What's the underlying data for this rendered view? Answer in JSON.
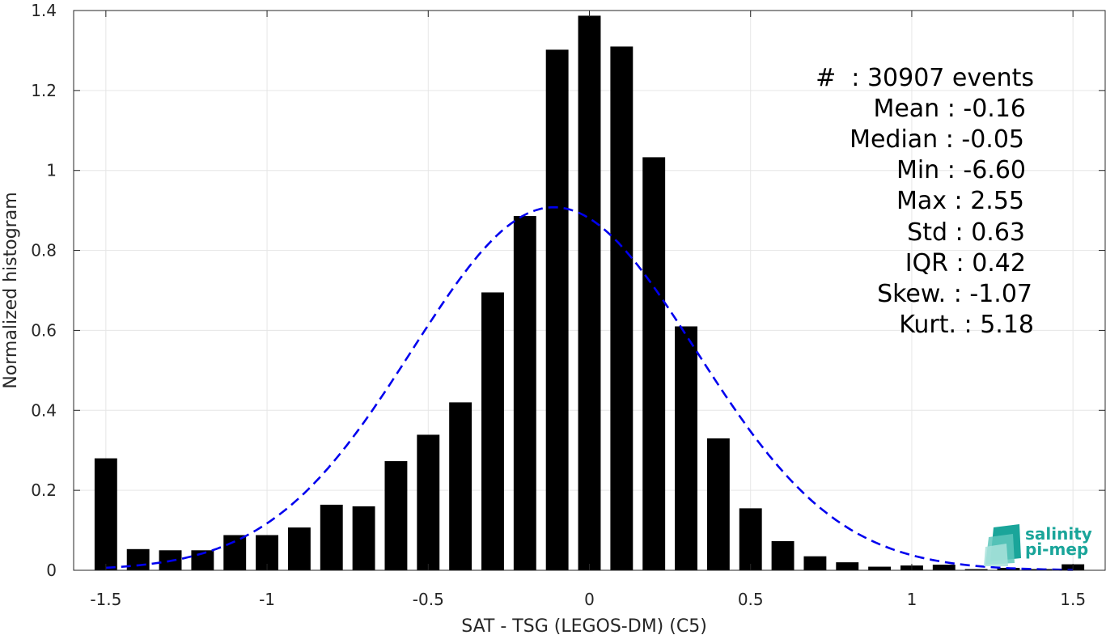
{
  "chart_data": {
    "type": "bar",
    "xlabel": "SAT - TSG (LEGOS-DM) (C5)",
    "ylabel": "Normalized histogram",
    "xlim": [
      -1.6,
      1.6
    ],
    "ylim": [
      0,
      1.4
    ],
    "xticks": [
      -1.5,
      -1,
      -0.5,
      0,
      0.5,
      1,
      1.5
    ],
    "xtick_labels": [
      "-1.5",
      "-1",
      "-0.5",
      "0",
      "0.5",
      "1",
      "1.5"
    ],
    "yticks": [
      0,
      0.2,
      0.4,
      0.6,
      0.8,
      1,
      1.2,
      1.4
    ],
    "ytick_labels": [
      "0",
      "0.2",
      "0.4",
      "0.6",
      "0.8",
      "1",
      "1.2",
      "1.4"
    ],
    "grid": true,
    "bar_width": 0.07,
    "bar_color": "#000000",
    "bins": [
      {
        "x": -1.5,
        "y": 0.28
      },
      {
        "x": -1.4,
        "y": 0.053
      },
      {
        "x": -1.3,
        "y": 0.05
      },
      {
        "x": -1.2,
        "y": 0.05
      },
      {
        "x": -1.1,
        "y": 0.088
      },
      {
        "x": -1.0,
        "y": 0.088
      },
      {
        "x": -0.9,
        "y": 0.107
      },
      {
        "x": -0.8,
        "y": 0.164
      },
      {
        "x": -0.7,
        "y": 0.16
      },
      {
        "x": -0.6,
        "y": 0.273
      },
      {
        "x": -0.5,
        "y": 0.339
      },
      {
        "x": -0.4,
        "y": 0.42
      },
      {
        "x": -0.3,
        "y": 0.695
      },
      {
        "x": -0.2,
        "y": 0.886
      },
      {
        "x": -0.1,
        "y": 1.302
      },
      {
        "x": 0.0,
        "y": 1.387
      },
      {
        "x": 0.1,
        "y": 1.31
      },
      {
        "x": 0.2,
        "y": 1.033
      },
      {
        "x": 0.3,
        "y": 0.61
      },
      {
        "x": 0.4,
        "y": 0.33
      },
      {
        "x": 0.5,
        "y": 0.155
      },
      {
        "x": 0.6,
        "y": 0.073
      },
      {
        "x": 0.7,
        "y": 0.035
      },
      {
        "x": 0.8,
        "y": 0.02
      },
      {
        "x": 0.9,
        "y": 0.009
      },
      {
        "x": 1.0,
        "y": 0.012
      },
      {
        "x": 1.1,
        "y": 0.014
      },
      {
        "x": 1.2,
        "y": 0.003
      },
      {
        "x": 1.3,
        "y": 0.006
      },
      {
        "x": 1.4,
        "y": 0.003
      },
      {
        "x": 1.5,
        "y": 0.015
      }
    ],
    "fit_curve": {
      "style": "dashed",
      "color": "#0000ee",
      "mean": -0.11,
      "std": 0.44,
      "peak": 0.908,
      "x_range": [
        -1.5,
        1.5
      ]
    }
  },
  "stats": [
    {
      "label": "#  : 30907 events"
    },
    {
      "label": "Mean : -0.16"
    },
    {
      "label": "Median : -0.05"
    },
    {
      "label": "Min : -6.60"
    },
    {
      "label": "Max : 2.55"
    },
    {
      "label": "Std : 0.63"
    },
    {
      "label": "IQR : 0.42"
    },
    {
      "label": "Skew. : -1.07"
    },
    {
      "label": "Kurt. : 5.18"
    }
  ],
  "logo": {
    "line1": "salinity",
    "line2": "pi-mep",
    "color": "#1aa59a"
  }
}
